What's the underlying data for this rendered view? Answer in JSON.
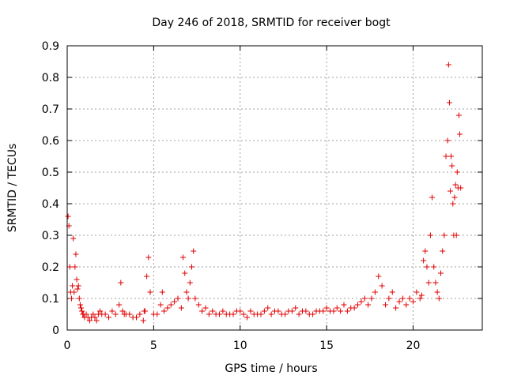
{
  "chart_data": {
    "type": "scatter",
    "title": "Day 246 of 2018, SRMTID for receiver bogt",
    "xlabel": "GPS time / hours",
    "ylabel": "SRMTID / TECUs",
    "xlim": [
      0,
      24
    ],
    "ylim": [
      0,
      0.9
    ],
    "x_ticks": [
      0,
      5,
      10,
      15,
      20
    ],
    "x_tick_labels": [
      "0",
      "5",
      "10",
      "15",
      "20"
    ],
    "y_ticks": [
      0,
      0.1,
      0.2,
      0.3,
      0.4,
      0.5,
      0.6,
      0.7,
      0.8,
      0.9
    ],
    "y_tick_labels": [
      "0",
      "0.1",
      "0.2",
      "0.3",
      "0.4",
      "0.5",
      "0.6",
      "0.7",
      "0.8",
      "0.9"
    ],
    "grid": true,
    "marker": "+",
    "color": "#e00000",
    "series": [
      {
        "name": "SRMTID",
        "x": [
          0.05,
          0.1,
          0.15,
          0.2,
          0.25,
          0.3,
          0.35,
          0.4,
          0.45,
          0.5,
          0.55,
          0.6,
          0.65,
          0.7,
          0.75,
          0.8,
          0.85,
          0.9,
          0.95,
          1.0,
          1.1,
          1.2,
          1.3,
          1.4,
          1.5,
          1.6,
          1.7,
          1.8,
          1.9,
          2.0,
          2.2,
          2.4,
          2.6,
          2.8,
          3.0,
          3.1,
          3.2,
          3.3,
          3.4,
          3.6,
          3.8,
          4.0,
          4.2,
          4.4,
          4.45,
          4.5,
          4.6,
          4.7,
          4.8,
          5.0,
          5.2,
          5.4,
          5.5,
          5.6,
          5.8,
          6.0,
          6.2,
          6.4,
          6.6,
          6.7,
          6.8,
          6.9,
          7.0,
          7.1,
          7.2,
          7.3,
          7.4,
          7.6,
          7.8,
          8.0,
          8.2,
          8.4,
          8.6,
          8.8,
          9.0,
          9.2,
          9.4,
          9.6,
          9.8,
          10.0,
          10.2,
          10.4,
          10.6,
          10.8,
          11.0,
          11.2,
          11.4,
          11.6,
          11.8,
          12.0,
          12.2,
          12.4,
          12.6,
          12.8,
          13.0,
          13.2,
          13.4,
          13.6,
          13.8,
          14.0,
          14.2,
          14.4,
          14.6,
          14.8,
          15.0,
          15.2,
          15.4,
          15.6,
          15.8,
          16.0,
          16.2,
          16.4,
          16.6,
          16.8,
          17.0,
          17.2,
          17.4,
          17.6,
          17.8,
          18.0,
          18.2,
          18.4,
          18.6,
          18.8,
          19.0,
          19.2,
          19.4,
          19.6,
          19.8,
          20.0,
          20.2,
          20.4,
          20.5,
          20.6,
          20.7,
          20.8,
          20.9,
          21.0,
          21.1,
          21.2,
          21.3,
          21.4,
          21.5,
          21.6,
          21.7,
          21.8,
          21.9,
          22.0,
          22.05,
          22.1,
          22.15,
          22.2,
          22.25,
          22.3,
          22.35,
          22.4,
          22.45,
          22.5,
          22.55,
          22.6,
          22.65,
          22.7,
          22.75
        ],
        "y": [
          0.36,
          0.33,
          0.2,
          0.12,
          0.1,
          0.14,
          0.29,
          0.12,
          0.2,
          0.24,
          0.16,
          0.13,
          0.14,
          0.1,
          0.08,
          0.07,
          0.06,
          0.05,
          0.05,
          0.04,
          0.05,
          0.04,
          0.03,
          0.04,
          0.05,
          0.04,
          0.03,
          0.05,
          0.06,
          0.05,
          0.05,
          0.04,
          0.06,
          0.05,
          0.08,
          0.15,
          0.06,
          0.05,
          0.05,
          0.05,
          0.04,
          0.04,
          0.05,
          0.03,
          0.06,
          0.06,
          0.17,
          0.23,
          0.12,
          0.05,
          0.05,
          0.08,
          0.12,
          0.06,
          0.07,
          0.08,
          0.09,
          0.1,
          0.07,
          0.23,
          0.18,
          0.12,
          0.1,
          0.15,
          0.2,
          0.25,
          0.1,
          0.08,
          0.06,
          0.07,
          0.05,
          0.06,
          0.05,
          0.05,
          0.06,
          0.05,
          0.05,
          0.05,
          0.06,
          0.06,
          0.05,
          0.04,
          0.06,
          0.05,
          0.05,
          0.05,
          0.06,
          0.07,
          0.05,
          0.06,
          0.06,
          0.05,
          0.05,
          0.06,
          0.06,
          0.07,
          0.05,
          0.06,
          0.06,
          0.05,
          0.05,
          0.06,
          0.06,
          0.06,
          0.07,
          0.06,
          0.06,
          0.07,
          0.06,
          0.08,
          0.06,
          0.07,
          0.07,
          0.08,
          0.09,
          0.1,
          0.08,
          0.1,
          0.12,
          0.17,
          0.14,
          0.08,
          0.1,
          0.12,
          0.07,
          0.09,
          0.1,
          0.08,
          0.1,
          0.09,
          0.12,
          0.1,
          0.11,
          0.22,
          0.25,
          0.2,
          0.15,
          0.3,
          0.42,
          0.2,
          0.15,
          0.12,
          0.1,
          0.18,
          0.25,
          0.3,
          0.55,
          0.6,
          0.84,
          0.72,
          0.44,
          0.55,
          0.52,
          0.4,
          0.3,
          0.42,
          0.46,
          0.3,
          0.5,
          0.45,
          0.68,
          0.62,
          0.45
        ]
      }
    ]
  }
}
